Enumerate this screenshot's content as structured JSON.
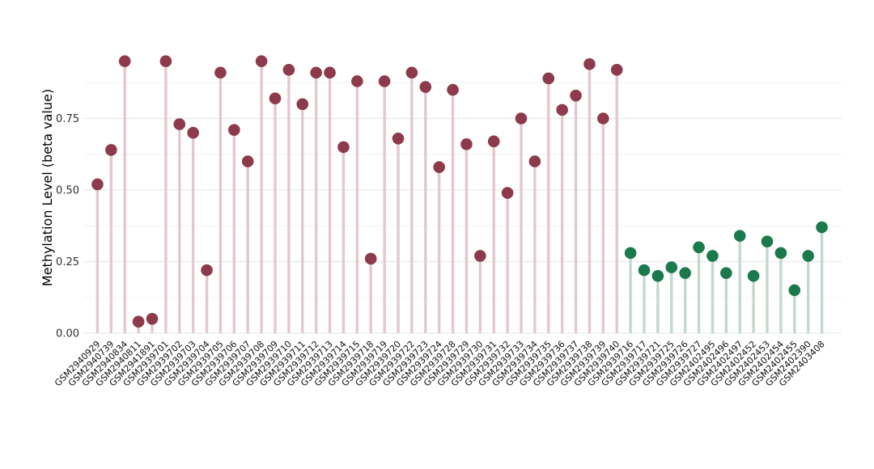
{
  "chart_data": {
    "type": "lollipop",
    "title": "",
    "xlabel": "",
    "ylabel": "Methylation Level (beta value)",
    "ylim": [
      0,
      1.0
    ],
    "yticks": [
      "0.00",
      "0.25",
      "0.50",
      "0.75"
    ],
    "minor_gridlines": [
      0.125,
      0.375,
      0.625,
      0.875
    ],
    "grid": "horizontal only, very light gray, white background",
    "legend_position": "none",
    "groups": {
      "case": {
        "dot_color": "#8e3a4d",
        "stem_color": "#e4c8ce"
      },
      "control": {
        "dot_color": "#1b7a4c",
        "stem_color": "#c3d9cc"
      }
    },
    "samples": [
      {
        "label": "GSM2940929",
        "value": 0.52,
        "group": "case"
      },
      {
        "label": "GSM2940739",
        "value": 0.64,
        "group": "case"
      },
      {
        "label": "GSM2940834",
        "value": 0.95,
        "group": "case"
      },
      {
        "label": "GSM2940811",
        "value": 0.04,
        "group": "case"
      },
      {
        "label": "GSM2941891",
        "value": 0.05,
        "group": "case"
      },
      {
        "label": "GSM2939701",
        "value": 0.95,
        "group": "case"
      },
      {
        "label": "GSM2939702",
        "value": 0.73,
        "group": "case"
      },
      {
        "label": "GSM2939703",
        "value": 0.7,
        "group": "case"
      },
      {
        "label": "GSM2939704",
        "value": 0.22,
        "group": "case"
      },
      {
        "label": "GSM2939705",
        "value": 0.91,
        "group": "case"
      },
      {
        "label": "GSM2939706",
        "value": 0.71,
        "group": "case"
      },
      {
        "label": "GSM2939707",
        "value": 0.6,
        "group": "case"
      },
      {
        "label": "GSM2939708",
        "value": 0.95,
        "group": "case"
      },
      {
        "label": "GSM2939709",
        "value": 0.82,
        "group": "case"
      },
      {
        "label": "GSM2939710",
        "value": 0.92,
        "group": "case"
      },
      {
        "label": "GSM2939711",
        "value": 0.8,
        "group": "case"
      },
      {
        "label": "GSM2939712",
        "value": 0.91,
        "group": "case"
      },
      {
        "label": "GSM2939713",
        "value": 0.91,
        "group": "case"
      },
      {
        "label": "GSM2939714",
        "value": 0.65,
        "group": "case"
      },
      {
        "label": "GSM2939715",
        "value": 0.88,
        "group": "case"
      },
      {
        "label": "GSM2939718",
        "value": 0.26,
        "group": "case"
      },
      {
        "label": "GSM2939719",
        "value": 0.88,
        "group": "case"
      },
      {
        "label": "GSM2939720",
        "value": 0.68,
        "group": "case"
      },
      {
        "label": "GSM2939722",
        "value": 0.91,
        "group": "case"
      },
      {
        "label": "GSM2939723",
        "value": 0.86,
        "group": "case"
      },
      {
        "label": "GSM2939724",
        "value": 0.58,
        "group": "case"
      },
      {
        "label": "GSM2939728",
        "value": 0.85,
        "group": "case"
      },
      {
        "label": "GSM2939729",
        "value": 0.66,
        "group": "case"
      },
      {
        "label": "GSM2939730",
        "value": 0.27,
        "group": "case"
      },
      {
        "label": "GSM2939731",
        "value": 0.67,
        "group": "case"
      },
      {
        "label": "GSM2939732",
        "value": 0.49,
        "group": "case"
      },
      {
        "label": "GSM2939733",
        "value": 0.75,
        "group": "case"
      },
      {
        "label": "GSM2939734",
        "value": 0.6,
        "group": "case"
      },
      {
        "label": "GSM2939735",
        "value": 0.89,
        "group": "case"
      },
      {
        "label": "GSM2939736",
        "value": 0.78,
        "group": "case"
      },
      {
        "label": "GSM2939737",
        "value": 0.83,
        "group": "case"
      },
      {
        "label": "GSM2939738",
        "value": 0.94,
        "group": "case"
      },
      {
        "label": "GSM2939739",
        "value": 0.75,
        "group": "case"
      },
      {
        "label": "GSM2939740",
        "value": 0.92,
        "group": "case"
      },
      {
        "label": "GSM2939716",
        "value": 0.28,
        "group": "control"
      },
      {
        "label": "GSM2939717",
        "value": 0.22,
        "group": "control"
      },
      {
        "label": "GSM2939721",
        "value": 0.2,
        "group": "control"
      },
      {
        "label": "GSM2939725",
        "value": 0.23,
        "group": "control"
      },
      {
        "label": "GSM2939726",
        "value": 0.21,
        "group": "control"
      },
      {
        "label": "GSM2939727",
        "value": 0.3,
        "group": "control"
      },
      {
        "label": "GSM2402495",
        "value": 0.27,
        "group": "control"
      },
      {
        "label": "GSM2402496",
        "value": 0.21,
        "group": "control"
      },
      {
        "label": "GSM2402497",
        "value": 0.34,
        "group": "control"
      },
      {
        "label": "GSM2402452",
        "value": 0.2,
        "group": "control"
      },
      {
        "label": "GSM2402453",
        "value": 0.32,
        "group": "control"
      },
      {
        "label": "GSM2402454",
        "value": 0.28,
        "group": "control"
      },
      {
        "label": "GSM2402455",
        "value": 0.15,
        "group": "control"
      },
      {
        "label": "GSM2402390",
        "value": 0.27,
        "group": "control"
      },
      {
        "label": "GSM2403408",
        "value": 0.37,
        "group": "control"
      }
    ]
  }
}
